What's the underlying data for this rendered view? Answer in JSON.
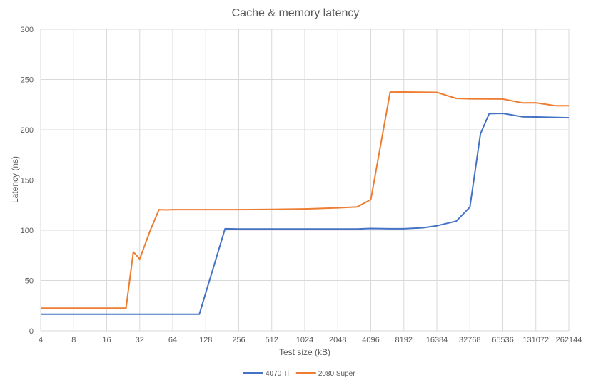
{
  "chart_data": {
    "type": "line",
    "title": "Cache & memory latency",
    "xlabel": "Test size (kB)",
    "ylabel": "Latency (ns)",
    "x_scale": "log2",
    "xlim": [
      4,
      262144
    ],
    "ylim": [
      0,
      300
    ],
    "x_ticks": [
      4,
      8,
      16,
      32,
      64,
      128,
      256,
      512,
      1024,
      2048,
      4096,
      8192,
      16384,
      32768,
      65536,
      131072,
      262144
    ],
    "y_ticks": [
      0,
      50,
      100,
      150,
      200,
      250,
      300
    ],
    "grid": true,
    "legend_position": "bottom",
    "series": [
      {
        "name": "4070 Ti",
        "color": "#4472c4",
        "points": [
          [
            4,
            16.5
          ],
          [
            8,
            16.5
          ],
          [
            16,
            16.5
          ],
          [
            32,
            16.5
          ],
          [
            64,
            16.5
          ],
          [
            112,
            16.5
          ],
          [
            192,
            101.5
          ],
          [
            256,
            101.3
          ],
          [
            512,
            101.3
          ],
          [
            1024,
            101.3
          ],
          [
            2048,
            101.3
          ],
          [
            3072,
            101.3
          ],
          [
            4096,
            101.8
          ],
          [
            6144,
            101.5
          ],
          [
            8192,
            101.5
          ],
          [
            12288,
            102.5
          ],
          [
            16384,
            104.5
          ],
          [
            24576,
            109
          ],
          [
            32768,
            123
          ],
          [
            40960,
            196
          ],
          [
            49152,
            216
          ],
          [
            65536,
            216.3
          ],
          [
            98304,
            213
          ],
          [
            131072,
            212.8
          ],
          [
            262144,
            212
          ]
        ]
      },
      {
        "name": "2080 Super",
        "color": "#ed7d31",
        "points": [
          [
            4,
            22.5
          ],
          [
            8,
            22.5
          ],
          [
            16,
            22.5
          ],
          [
            24,
            22.5
          ],
          [
            28,
            78.5
          ],
          [
            32,
            71.5
          ],
          [
            40,
            100
          ],
          [
            48,
            120.5
          ],
          [
            56,
            120.2
          ],
          [
            64,
            120.5
          ],
          [
            128,
            120.5
          ],
          [
            256,
            120.5
          ],
          [
            512,
            120.8
          ],
          [
            1024,
            121.2
          ],
          [
            2048,
            122.3
          ],
          [
            3072,
            123.2
          ],
          [
            4096,
            130.5
          ],
          [
            6144,
            237.5
          ],
          [
            8192,
            237.6
          ],
          [
            16384,
            237.2
          ],
          [
            24576,
            231.2
          ],
          [
            32768,
            230.8
          ],
          [
            65536,
            230.6
          ],
          [
            98304,
            226.8
          ],
          [
            131072,
            226.9
          ],
          [
            196608,
            224
          ],
          [
            262144,
            224
          ]
        ]
      }
    ]
  }
}
